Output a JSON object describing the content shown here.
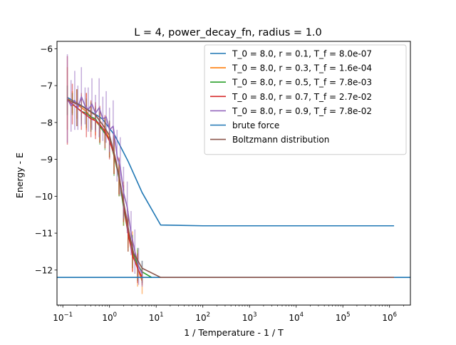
{
  "chart_data": {
    "type": "line",
    "title": "L = 4, power_decay_fn, radius = 1.0",
    "xlabel": "1 / Temperature - 1 / T",
    "ylabel": "Energy - E",
    "xscale": "log",
    "xlim": [
      0.075,
      2800000
    ],
    "ylim": [
      -12.95,
      -5.8
    ],
    "grid": false,
    "legend_position": "top-right",
    "x_ticks": [
      {
        "value": 0.1,
        "base": "10",
        "exp": "−1"
      },
      {
        "value": 1,
        "base": "10",
        "exp": "0"
      },
      {
        "value": 10,
        "base": "10",
        "exp": "1"
      },
      {
        "value": 100,
        "base": "10",
        "exp": "2"
      },
      {
        "value": 1000,
        "base": "10",
        "exp": "3"
      },
      {
        "value": 10000,
        "base": "10",
        "exp": "4"
      },
      {
        "value": 100000,
        "base": "10",
        "exp": "5"
      },
      {
        "value": 1000000,
        "base": "10",
        "exp": "6"
      }
    ],
    "y_ticks": [
      {
        "value": -6,
        "label": "−6"
      },
      {
        "value": -7,
        "label": "−7"
      },
      {
        "value": -8,
        "label": "−8"
      },
      {
        "value": -9,
        "label": "−9"
      },
      {
        "value": -10,
        "label": "−10"
      },
      {
        "value": -11,
        "label": "−11"
      },
      {
        "value": -12,
        "label": "−12"
      }
    ],
    "series": [
      {
        "name": "T_0 = 8.0, r = 0.1, T_f = 8.0e-07",
        "color": "#1f77b4",
        "x": [
          0.125,
          0.3,
          0.7,
          1.3,
          2.5,
          5,
          12.5,
          100,
          1000,
          10000,
          100000,
          1250000
        ],
        "y": [
          -7.32,
          -7.6,
          -7.9,
          -8.35,
          -9.05,
          -9.9,
          -10.78,
          -10.8,
          -10.8,
          -10.8,
          -10.8,
          -10.8
        ],
        "errors": null
      },
      {
        "name": "T_0 = 8.0, r = 0.3, T_f = 1.6e-04",
        "color": "#ff7f0e",
        "x": [
          0.125,
          0.16,
          0.2,
          0.25,
          0.32,
          0.4,
          0.5,
          0.62,
          0.8,
          1.0,
          1.25,
          1.6,
          2.0,
          2.5,
          3.1,
          4.0,
          5.0
        ],
        "y": [
          -7.35,
          -7.45,
          -7.5,
          -7.6,
          -7.7,
          -7.85,
          -7.95,
          -8.1,
          -8.2,
          -8.45,
          -8.85,
          -9.5,
          -10.2,
          -10.9,
          -11.5,
          -11.95,
          -12.3
        ],
        "errors": [
          0.85,
          0.3,
          0.4,
          0.35,
          0.5,
          0.3,
          0.4,
          0.45,
          0.35,
          0.5,
          0.55,
          0.5,
          0.6,
          0.5,
          0.55,
          0.5,
          0.35
        ]
      },
      {
        "name": "T_0 = 8.0, r = 0.5, T_f = 7.8e-03",
        "color": "#2ca02c",
        "x": [
          0.125,
          0.16,
          0.2,
          0.25,
          0.32,
          0.4,
          0.5,
          0.62,
          0.8,
          1.0,
          1.25,
          1.6,
          2.0,
          2.5,
          3.1,
          4.0,
          5.0,
          8.0
        ],
        "y": [
          -7.4,
          -7.5,
          -7.6,
          -7.7,
          -7.75,
          -7.85,
          -7.9,
          -8.1,
          -8.3,
          -8.45,
          -8.9,
          -9.5,
          -10.3,
          -11.0,
          -11.5,
          -11.85,
          -12.05,
          -12.2
        ],
        "errors": [
          0.4,
          0.3,
          0.5,
          0.35,
          0.4,
          0.4,
          0.3,
          0.5,
          0.45,
          0.5,
          0.55,
          0.5,
          0.5,
          0.5,
          0.45,
          0.45,
          0.3,
          0
        ]
      },
      {
        "name": "T_0 = 8.0, r = 0.7, T_f = 2.7e-02",
        "color": "#d62728",
        "x": [
          0.125,
          0.16,
          0.2,
          0.25,
          0.32,
          0.4,
          0.5,
          0.62,
          0.8,
          1.0,
          1.25,
          1.6,
          2.0,
          2.5,
          3.1,
          4.0,
          5.0
        ],
        "y": [
          -7.4,
          -7.5,
          -7.6,
          -7.7,
          -7.8,
          -7.9,
          -7.95,
          -8.05,
          -8.25,
          -8.5,
          -8.85,
          -9.45,
          -10.2,
          -11.0,
          -11.6,
          -11.95,
          -12.2
        ],
        "errors": [
          1.2,
          0.55,
          0.5,
          0.5,
          0.6,
          0.5,
          0.5,
          0.5,
          0.45,
          0.5,
          0.55,
          0.5,
          0.5,
          0.5,
          0.45,
          0.4,
          0.2
        ]
      },
      {
        "name": "T_0 = 8.0, r = 0.9, T_f = 7.8e-02",
        "color": "#9467bd",
        "x": [
          0.125,
          0.15,
          0.18,
          0.21,
          0.25,
          0.3,
          0.35,
          0.42,
          0.5,
          0.6,
          0.72,
          0.85,
          1.0,
          1.2,
          1.45,
          1.7,
          2.0,
          2.4,
          2.9,
          3.5,
          4.2,
          5.0
        ],
        "y": [
          -7.35,
          -7.55,
          -7.4,
          -7.6,
          -7.3,
          -7.55,
          -7.65,
          -7.5,
          -7.75,
          -7.6,
          -7.9,
          -7.85,
          -8.2,
          -8.1,
          -8.9,
          -9.2,
          -9.9,
          -10.3,
          -11.0,
          -11.5,
          -11.9,
          -12.1
        ],
        "errors": [
          1.2,
          0.7,
          0.8,
          0.6,
          0.8,
          0.5,
          0.6,
          0.7,
          0.5,
          0.8,
          0.6,
          0.7,
          0.6,
          0.7,
          0.7,
          0.8,
          0.7,
          0.7,
          0.6,
          0.6,
          0.5,
          0.35
        ]
      },
      {
        "name": "brute force",
        "color": "#1f77b4",
        "x": [
          0.075,
          2800000
        ],
        "y": [
          -12.2,
          -12.2
        ],
        "errors": null
      },
      {
        "name": "Boltzmann distribution",
        "color": "#8c564b",
        "x": [
          0.125,
          0.25,
          0.5,
          0.75,
          1.0,
          1.3,
          1.6,
          2.0,
          2.6,
          3.3,
          5.0,
          12.5,
          25,
          100,
          1000,
          1250000
        ],
        "y": [
          -7.38,
          -7.55,
          -7.8,
          -8.1,
          -8.35,
          -8.9,
          -9.45,
          -10.15,
          -10.95,
          -11.55,
          -11.95,
          -12.2,
          -12.2,
          -12.2,
          -12.2,
          -12.2
        ],
        "errors": null
      }
    ]
  }
}
